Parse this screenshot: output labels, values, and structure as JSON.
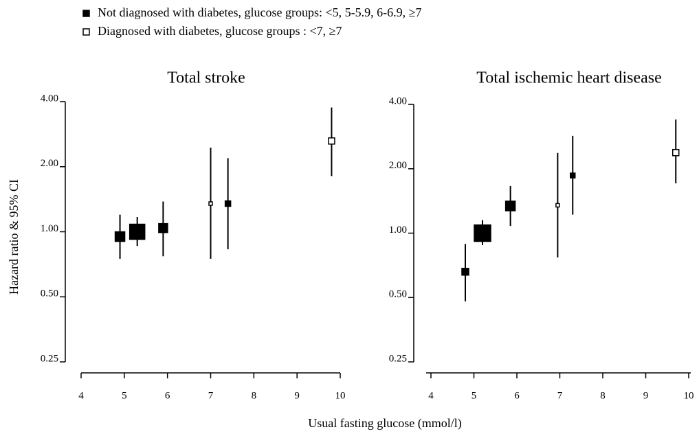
{
  "chart_data": [
    {
      "type": "scatter",
      "title": "Total stroke",
      "ylabel": "Hazard ratio & 95% CI",
      "xlabel": "Usual fasting glucose (mmol/l)",
      "log_y": true,
      "xlim": [
        4,
        10
      ],
      "xticks": [
        4,
        5,
        6,
        7,
        8,
        9,
        10
      ],
      "ylim": [
        0.25,
        4
      ],
      "yticks": [
        {
          "value": 0.25,
          "label": "0.25"
        },
        {
          "value": 0.5,
          "label": "0.50"
        },
        {
          "value": 1,
          "label": "1.00"
        },
        {
          "value": 2,
          "label": "2.00"
        },
        {
          "value": 4,
          "label": "4.00"
        }
      ],
      "series": [
        {
          "name": "Not diagnosed with diabetes, glucose groups: <5, 5-5.9, 6-6.9, ≥7",
          "color": "#000000",
          "filled": true,
          "x": [
            4.9,
            5.3,
            5.9,
            7.4
          ],
          "values": [
            0.95,
            1.0,
            1.04,
            1.35
          ],
          "ci_low": [
            0.75,
            0.86,
            0.77,
            0.83
          ],
          "ci_high": [
            1.2,
            1.17,
            1.38,
            2.19
          ],
          "sizes": [
            14,
            22,
            13,
            8
          ]
        },
        {
          "name": "Diagnosed with diabetes, glucose groups : <7, ≥7",
          "color": "#000000",
          "filled": false,
          "x": [
            7.0,
            9.8
          ],
          "values": [
            1.35,
            2.63
          ],
          "ci_low": [
            0.75,
            1.81
          ],
          "ci_high": [
            2.45,
            3.76
          ],
          "sizes": [
            5,
            9
          ]
        }
      ]
    },
    {
      "type": "scatter",
      "title": "Total ischemic heart disease",
      "log_y": true,
      "xlim": [
        4,
        10
      ],
      "xticks": [
        4,
        5,
        6,
        7,
        8,
        9,
        10
      ],
      "ylim": [
        0.25,
        4
      ],
      "yticks": [
        {
          "value": 0.25,
          "label": "0.25"
        },
        {
          "value": 0.5,
          "label": "0.50"
        },
        {
          "value": 1,
          "label": "1.00"
        },
        {
          "value": 2,
          "label": "2.00"
        },
        {
          "value": 4,
          "label": "4.00"
        }
      ],
      "series": [
        {
          "color": "#000000",
          "filled": true,
          "x": [
            4.8,
            5.2,
            5.85,
            7.3
          ],
          "values": [
            0.66,
            1.0,
            1.34,
            1.86
          ],
          "ci_low": [
            0.48,
            0.88,
            1.08,
            1.22
          ],
          "ci_high": [
            0.89,
            1.15,
            1.66,
            2.85
          ],
          "sizes": [
            10,
            24,
            14,
            7
          ]
        },
        {
          "color": "#000000",
          "filled": false,
          "x": [
            6.95,
            9.7
          ],
          "values": [
            1.35,
            2.38
          ],
          "ci_low": [
            0.77,
            1.71
          ],
          "ci_high": [
            2.37,
            3.4
          ],
          "sizes": [
            5,
            9
          ]
        }
      ]
    }
  ]
}
